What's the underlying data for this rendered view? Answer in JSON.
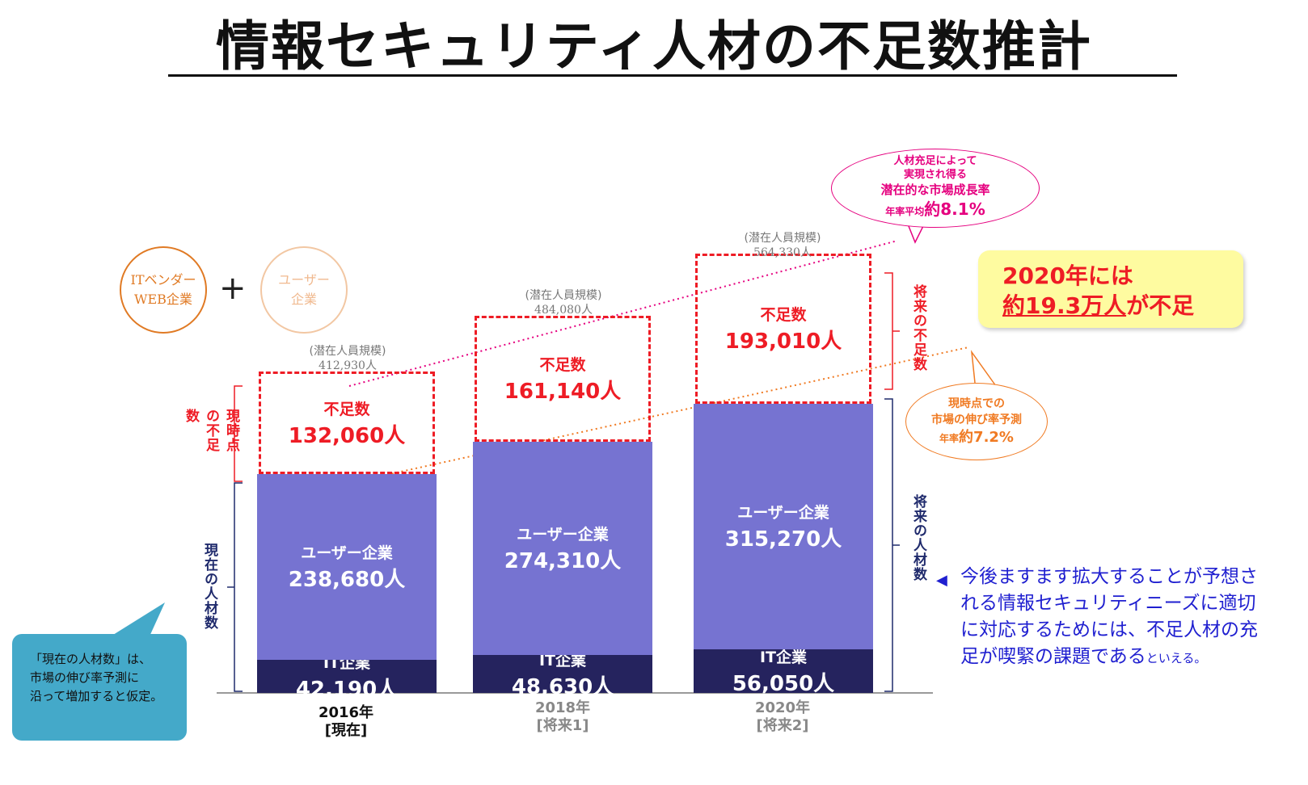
{
  "title": "情報セキュリティ人材の不足数推計",
  "circles": {
    "it_vendor": [
      "ITベンダー",
      "WEB企業"
    ],
    "plus": "+",
    "user_company": [
      "ユーザー",
      "企業"
    ]
  },
  "colors": {
    "it": "#25235e",
    "user": "#7673d1",
    "shortage": "#ee1c25",
    "orange": "#f07a22",
    "pink": "#e5007f",
    "navy": "#1f2a6c",
    "callout_yellow": "#fefba0",
    "note_blue": "#1f1fd0",
    "teal": "#44a9c9"
  },
  "chart_data": {
    "type": "bar",
    "stacked": true,
    "categories": [
      "2016年",
      "2018年",
      "2020年"
    ],
    "category_sub": [
      "[現在]",
      "[将来1]",
      "[将来2]"
    ],
    "series": [
      {
        "name": "IT企業",
        "values": [
          42190,
          48630,
          56050
        ]
      },
      {
        "name": "ユーザー企業",
        "values": [
          238680,
          274310,
          315270
        ]
      },
      {
        "name": "不足数",
        "values": [
          132060,
          161140,
          193010
        ]
      }
    ],
    "potential_label": "(潜在人員規模)",
    "potential_totals": [
      412930,
      484080,
      564330
    ],
    "value_labels": {
      "it": [
        "42,190人",
        "48,630人",
        "56,050人"
      ],
      "user": [
        "238,680人",
        "274,310人",
        "315,270人"
      ],
      "shortage": [
        "132,060人",
        "161,140人",
        "193,010人"
      ],
      "potential": [
        "412,930人",
        "484,080人",
        "564,330人"
      ]
    },
    "segment_names": {
      "it": "IT企業",
      "user": "ユーザー企業",
      "shortage": "不足数"
    }
  },
  "side_labels": {
    "current_shortage": "現時点の不足数",
    "current_talent": "現在の人材数",
    "future_shortage": "将来の不足数",
    "future_talent": "将来の人材数"
  },
  "bubble_pink": {
    "line1": "人材充足によって",
    "line2": "実現され得る",
    "line3": "潜在的な市場成長率",
    "line4_small": "年率平均",
    "line4_big": "約8.1%"
  },
  "bubble_orange": {
    "line1": "現時点での",
    "line2": "市場の伸び率予測",
    "line3_small": "年率",
    "line3_big": "約7.2%"
  },
  "callout": {
    "line1": "2020年には",
    "line2_underlined": "約19.3万人",
    "line2_rest": "が不足"
  },
  "note": {
    "main": "今後ますます拡大することが予想される情報セキュリティニーズに適切に対応するためには、不足人材の充足が喫緊の課題である",
    "tail": "といえる。"
  },
  "teal_note": {
    "line1": "「現在の人材数」は、",
    "line2": "市場の伸び率予測に",
    "line3": "沿って増加すると仮定。"
  }
}
